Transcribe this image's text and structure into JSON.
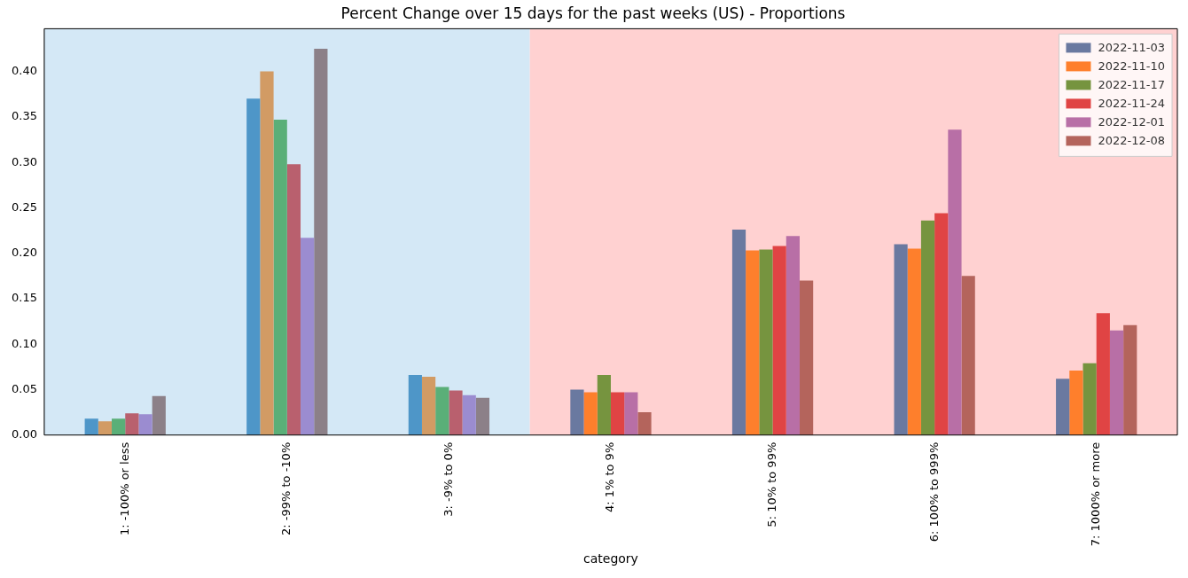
{
  "chart_data": {
    "type": "bar",
    "title": "Percent Change over 15 days for the past weeks (US) - Proportions",
    "xlabel": "category",
    "categories": [
      "1: -100% or less",
      "2: -99% to -10%",
      "3: -9% to 0%",
      "4: 1% to 9%",
      "5: 10% to 99%",
      "6: 100% to 999%",
      "7: 1000% or more"
    ],
    "series": [
      {
        "name": "2022-11-03",
        "color": "#6a79a0",
        "colors": [
          "#4e96c8",
          "#4e96c8",
          "#4e96c8",
          "#6a79a0",
          "#6a79a0",
          "#6a79a0",
          "#6a79a0"
        ],
        "values": [
          0.018,
          0.37,
          0.066,
          0.05,
          0.226,
          0.21,
          0.062
        ]
      },
      {
        "name": "2022-11-10",
        "color": "#fe7f2c",
        "colors": [
          "#d29b64",
          "#d29b64",
          "#d29b64",
          "#fe7f2c",
          "#fe7f2c",
          "#fe7f2c",
          "#fe7f2c"
        ],
        "values": [
          0.015,
          0.4,
          0.064,
          0.047,
          0.203,
          0.205,
          0.071
        ]
      },
      {
        "name": "2022-11-17",
        "color": "#76943f",
        "colors": [
          "#5aaf78",
          "#5aaf78",
          "#5aaf78",
          "#76943f",
          "#76943f",
          "#76943f",
          "#76943f"
        ],
        "values": [
          0.018,
          0.347,
          0.053,
          0.066,
          0.204,
          0.236,
          0.079
        ]
      },
      {
        "name": "2022-11-24",
        "color": "#e04444",
        "colors": [
          "#b9606e",
          "#b9606e",
          "#b9606e",
          "#e04444",
          "#e04444",
          "#e04444",
          "#e04444"
        ],
        "values": [
          0.024,
          0.298,
          0.049,
          0.047,
          0.208,
          0.244,
          0.134
        ]
      },
      {
        "name": "2022-12-01",
        "color": "#b86fa6",
        "colors": [
          "#9b8cd0",
          "#9b8cd0",
          "#9b8cd0",
          "#b86fa6",
          "#b86fa6",
          "#b86fa6",
          "#b86fa6"
        ],
        "values": [
          0.023,
          0.217,
          0.044,
          0.047,
          0.219,
          0.336,
          0.115
        ]
      },
      {
        "name": "2022-12-08",
        "color": "#b4645c",
        "colors": [
          "#8c8088",
          "#8c8088",
          "#8c8088",
          "#b4645c",
          "#b4645c",
          "#b4645c",
          "#b4645c"
        ],
        "values": [
          0.043,
          0.425,
          0.041,
          0.025,
          0.17,
          0.175,
          0.121
        ]
      }
    ],
    "bands": [
      {
        "axis": "x",
        "from": "1: -100% or less",
        "to": "3: -9% to 0%",
        "color": "#d4e8f6"
      },
      {
        "axis": "x",
        "from": "4: 1% to 9%",
        "to": "7: 1000% or more",
        "color": "#ffd1d1"
      }
    ],
    "ylim": [
      0,
      0.447
    ],
    "yticks": [
      {
        "value": 0,
        "label": "0.00"
      },
      {
        "value": 0.05,
        "label": "0.05"
      },
      {
        "value": 0.1,
        "label": "0.10"
      },
      {
        "value": 0.15,
        "label": "0.15"
      },
      {
        "value": 0.2,
        "label": "0.20"
      },
      {
        "value": 0.25,
        "label": "0.25"
      },
      {
        "value": 0.3,
        "label": "0.30"
      },
      {
        "value": 0.35,
        "label": "0.35"
      },
      {
        "value": 0.4,
        "label": "0.40"
      }
    ],
    "grid": false,
    "legend": "top right"
  }
}
